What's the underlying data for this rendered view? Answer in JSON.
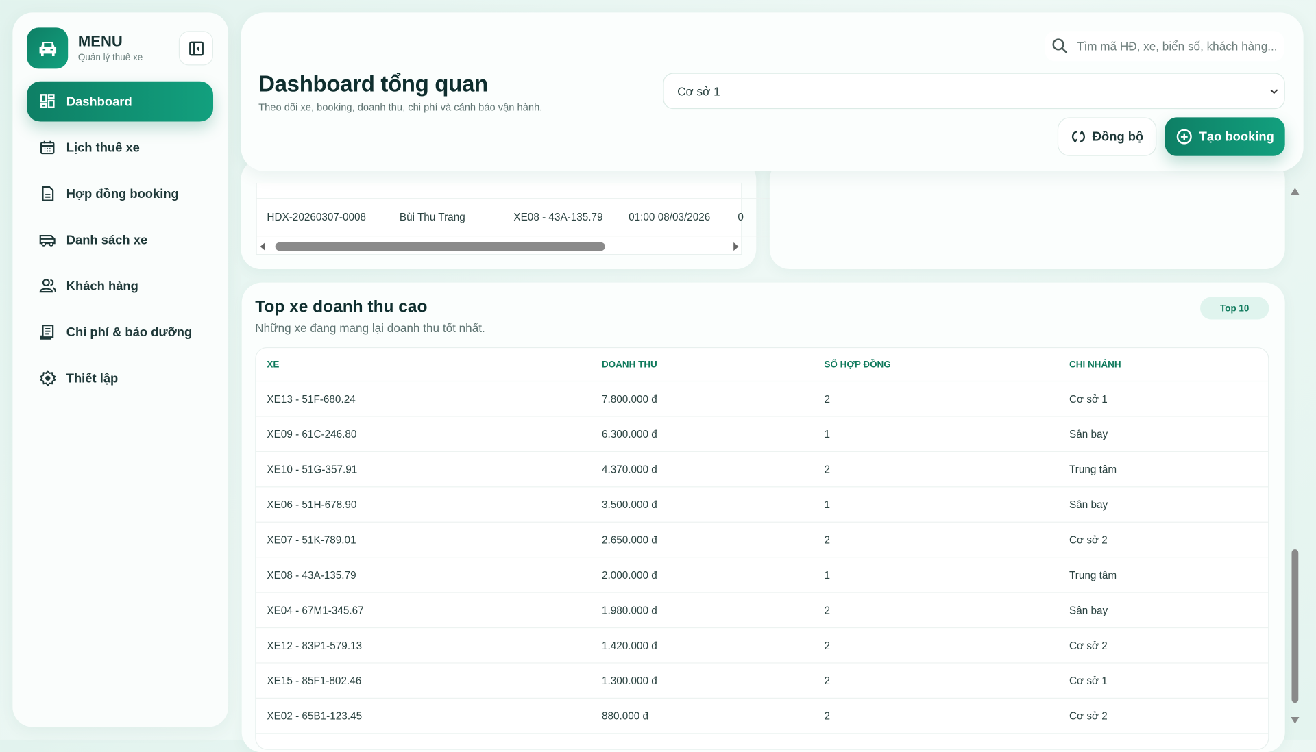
{
  "sidebar": {
    "title": "MENU",
    "subtitle": "Quản lý thuê xe",
    "items": [
      {
        "label": "Dashboard",
        "icon": "dashboard-icon",
        "active": true
      },
      {
        "label": "Lịch thuê xe",
        "icon": "calendar-icon"
      },
      {
        "label": "Hợp đồng booking",
        "icon": "document-icon"
      },
      {
        "label": "Danh sách xe",
        "icon": "van-icon"
      },
      {
        "label": "Khách hàng",
        "icon": "users-icon"
      },
      {
        "label": "Chi phí & bảo dưỡng",
        "icon": "receipt-icon"
      },
      {
        "label": "Thiết lập",
        "icon": "gear-icon"
      }
    ]
  },
  "header": {
    "title": "Dashboard tổng quan",
    "subtitle": "Theo dõi xe, booking, doanh thu, chi phí và cảnh báo vận hành.",
    "search_placeholder": "Tìm mã HĐ, xe, biển số, khách hàng...",
    "branch_selected": "Cơ sở 1",
    "sync_label": "Đồng bộ",
    "create_label": "Tạo booking"
  },
  "booking_row": {
    "code": "HDX-20260307-0008",
    "customer": "Bùi Thu Trang",
    "vehicle": "XE08 - 43A-135.79",
    "time": "01:00 08/03/2026",
    "cut": "0"
  },
  "top_vehicles": {
    "title": "Top xe doanh thu cao",
    "subtitle": "Những xe đang mang lại doanh thu tốt nhất.",
    "badge": "Top 10",
    "columns": [
      "XE",
      "DOANH THU",
      "SỐ HỢP ĐỒNG",
      "CHI NHÁNH"
    ],
    "rows": [
      [
        "XE13 - 51F-680.24",
        "7.800.000 đ",
        "2",
        "Cơ sở 1"
      ],
      [
        "XE09 - 61C-246.80",
        "6.300.000 đ",
        "1",
        "Sân bay"
      ],
      [
        "XE10 - 51G-357.91",
        "4.370.000 đ",
        "2",
        "Trung tâm"
      ],
      [
        "XE06 - 51H-678.90",
        "3.500.000 đ",
        "1",
        "Sân bay"
      ],
      [
        "XE07 - 51K-789.01",
        "2.650.000 đ",
        "2",
        "Cơ sở 2"
      ],
      [
        "XE08 - 43A-135.79",
        "2.000.000 đ",
        "1",
        "Trung tâm"
      ],
      [
        "XE04 - 67M1-345.67",
        "1.980.000 đ",
        "2",
        "Sân bay"
      ],
      [
        "XE12 - 83P1-579.13",
        "1.420.000 đ",
        "2",
        "Cơ sở 2"
      ],
      [
        "XE15 - 85F1-802.46",
        "1.300.000 đ",
        "2",
        "Cơ sở 1"
      ],
      [
        "XE02 - 65B1-123.45",
        "880.000 đ",
        "2",
        "Cơ sở 2"
      ]
    ]
  },
  "colors": {
    "accent": "#0f8a6c",
    "accent_light": "#e0f4ee",
    "text": "#0f2e2e"
  }
}
